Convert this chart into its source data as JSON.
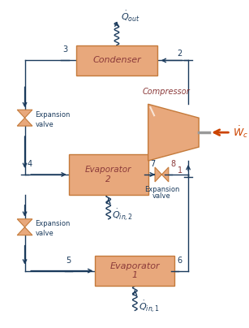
{
  "bg_color": "#ffffff",
  "box_color": "#E8A87C",
  "box_edge_color": "#C47A3A",
  "line_color": "#1a3a5c",
  "label_color": "#8B3A3A",
  "number_color": "#1a3a5c",
  "wc_arrow_color": "#CC4400",
  "Qout_label": "$\\dot{Q}_{out}$",
  "Qin2_label": "$\\dot{Q}_{in,2}$",
  "Qin1_label": "$\\dot{Q}_{in,1}$",
  "Wc_label": "$\\dot{W}_c$",
  "compressor_label": "Compressor"
}
